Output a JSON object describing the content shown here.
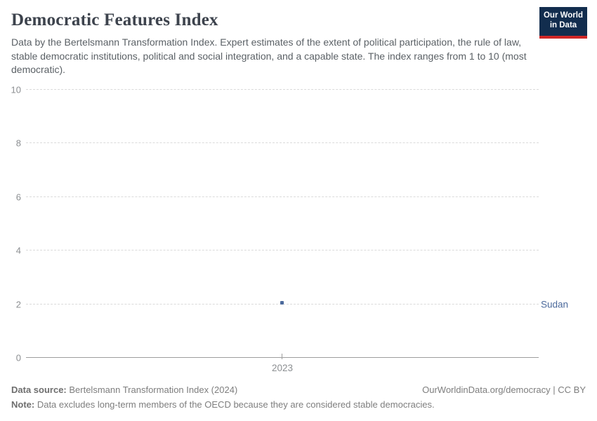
{
  "header": {
    "title": "Democratic Features Index",
    "subtitle": "Data by the Bertelsmann Transformation Index. Expert estimates of the extent of political participation, the rule of law, stable democratic institutions, political and social integration, and a capable state. The index ranges from 1 to 10 (most democratic).",
    "logo": {
      "line1": "Our World",
      "line2": "in Data",
      "bg_color": "#122d4e",
      "accent_color": "#cf2626"
    }
  },
  "chart_data": {
    "type": "scatter",
    "title": "Democratic Features Index",
    "x": [
      2023
    ],
    "series": [
      {
        "name": "Sudan",
        "color": "#4c6a9c",
        "values": [
          2.05
        ]
      }
    ],
    "xlabel": "",
    "ylabel": "",
    "ylim": [
      0,
      10
    ],
    "y_gridlines": [
      10,
      8,
      6,
      4,
      2,
      0
    ],
    "grid": "dashed-horizontal, solid zero baseline",
    "legend_position": "entity label right of plot"
  },
  "axes": {
    "y_tick_labels": [
      "10",
      "8",
      "6",
      "4",
      "2",
      "0"
    ],
    "x_tick_label": "2023"
  },
  "entity": {
    "label": "Sudan"
  },
  "footer": {
    "source_prefix": "Data source:",
    "source_text": " Bertelsmann Transformation Index (2024)",
    "link_text": "OurWorldinData.org/democracy | CC BY",
    "note_prefix": "Note:",
    "note_text": " Data excludes long-term members of the OECD because they are considered stable democracies."
  }
}
